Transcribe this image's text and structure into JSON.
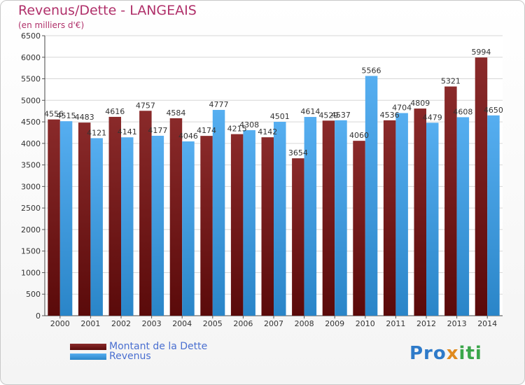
{
  "header": {
    "title": "Revenus/Dette - LANGEAIS",
    "subtitle": "(en milliers d'€)"
  },
  "chart_data": {
    "type": "bar",
    "categories": [
      "2000",
      "2001",
      "2002",
      "2003",
      "2004",
      "2005",
      "2006",
      "2007",
      "2008",
      "2009",
      "2010",
      "2011",
      "2012",
      "2013",
      "2014"
    ],
    "series": [
      {
        "name": "Montant de la Dette",
        "color": "#7a1a1a",
        "values": [
          4556,
          4483,
          4616,
          4757,
          4584,
          4174,
          4215,
          4142,
          3654,
          4529,
          4060,
          4536,
          4809,
          5321,
          5994
        ],
        "labels": [
          "4556",
          "4483",
          "4616",
          "4757",
          "4584",
          "4174",
          "4215",
          "4142",
          "3654",
          "4529",
          "4060",
          "4536",
          "4809",
          "5321",
          "5994"
        ]
      },
      {
        "name": "Revenus",
        "color": "#3d9be0",
        "values": [
          4515,
          4121,
          4141,
          4177,
          4046,
          4777,
          4308,
          4501,
          4614,
          4537,
          5566,
          4704,
          4479,
          4608,
          4650
        ],
        "labels": [
          "4515",
          "4121",
          "4141",
          "4177",
          "4046",
          "4777",
          "4308",
          "4501",
          "4614",
          "4537",
          "5566",
          "4704",
          "4479",
          "4608",
          "4650"
        ]
      }
    ],
    "ylim": [
      0,
      6500
    ],
    "yticks": [
      0,
      500,
      1000,
      1500,
      2000,
      2500,
      3000,
      3500,
      4000,
      4500,
      5000,
      5500,
      6000,
      6500
    ],
    "grid": true,
    "legend_position": "bottom-left"
  },
  "legend": {
    "items": [
      {
        "label": "Montant de la Dette",
        "color": "#7a1a1a"
      },
      {
        "label": "Revenus",
        "color": "#3d9be0"
      }
    ]
  },
  "logo": {
    "part1": "Pro",
    "part2": "x",
    "part3": "iti"
  }
}
